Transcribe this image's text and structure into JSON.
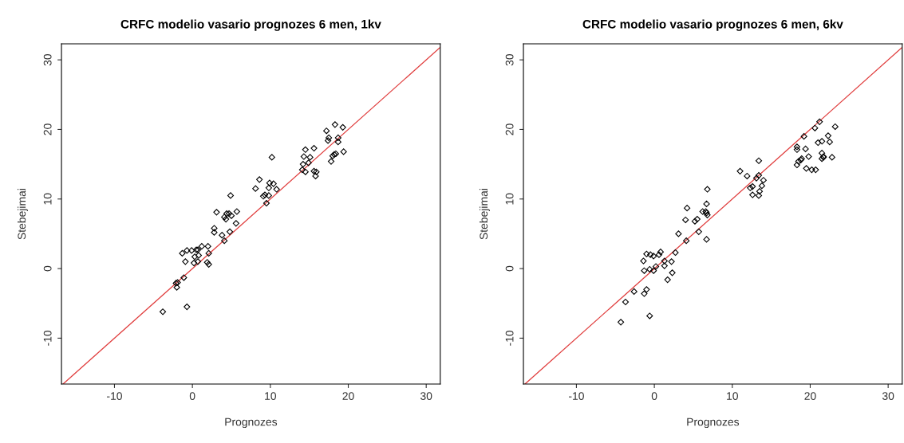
{
  "chart_data": [
    {
      "type": "scatter",
      "title": "CRFC modelio vasario prognozes 6 men, 1kv",
      "xlabel": "Prognozes",
      "ylabel": "Stebejimai",
      "xlim": [
        -16.8,
        31.8
      ],
      "ylim": [
        -16.6,
        32.3
      ],
      "xticks": [
        -10,
        0,
        10,
        20,
        30
      ],
      "yticks": [
        -10,
        0,
        10,
        20,
        30
      ],
      "grid": false,
      "marker": "diamond",
      "series": [
        {
          "color": "#000000",
          "x": [
            -3.8,
            -0.7,
            -2.0,
            -1.9,
            -2.1,
            -1.1,
            -1.3,
            -0.7,
            -0.1,
            0.5,
            0.7,
            1.2,
            2.0,
            -0.9,
            0.2,
            0.7,
            0.3,
            0.8,
            2.1,
            1.9,
            2.1,
            2.8,
            2.8,
            3.1,
            3.8,
            4.1,
            4.1,
            4.3,
            4.4,
            4.7,
            5.0,
            4.9,
            4.8,
            5.6,
            5.7,
            8.1,
            8.6,
            9.1,
            9.3,
            9.5,
            9.8,
            9.8,
            9.9,
            10.4,
            10.8,
            10.2,
            14.2,
            14.1,
            14.5,
            14.3,
            14.5,
            14.9,
            15.1,
            15.6,
            15.6,
            15.9,
            15.8,
            17.2,
            18.3,
            19.3,
            17.5,
            17.4,
            18.7,
            18.7,
            17.8,
            18.0,
            18.2,
            18.4,
            19.4
          ],
          "values": [
            -6.2,
            -5.5,
            -2.7,
            -2.0,
            -2.1,
            -1.3,
            2.2,
            2.6,
            2.6,
            2.7,
            2.7,
            3.2,
            3.2,
            1.0,
            0.8,
            1.0,
            1.7,
            1.9,
            2.2,
            0.9,
            0.6,
            5.8,
            5.2,
            8.1,
            4.8,
            4.0,
            7.4,
            7.1,
            7.9,
            7.9,
            7.6,
            10.5,
            5.3,
            6.5,
            8.2,
            11.5,
            12.8,
            10.4,
            10.6,
            9.4,
            10.5,
            11.6,
            12.3,
            12.2,
            11.4,
            16.0,
            15.0,
            14.2,
            13.9,
            16.1,
            17.1,
            15.2,
            16.0,
            17.3,
            14.0,
            13.9,
            13.3,
            19.8,
            20.7,
            20.3,
            18.8,
            18.4,
            18.8,
            18.2,
            15.4,
            16.2,
            16.4,
            16.5,
            16.8
          ]
        },
        {
          "type": "line",
          "color": "#e03c3c",
          "x": [
            -16.6,
            31.8
          ],
          "values": [
            -16.6,
            31.8
          ],
          "marker": "none"
        }
      ]
    },
    {
      "type": "scatter",
      "title": "CRFC modelio vasario prognozes 6 men, 6kv",
      "xlabel": "Prognozes",
      "ylabel": "Stebejimai",
      "xlim": [
        -16.8,
        31.8
      ],
      "ylim": [
        -16.6,
        32.3
      ],
      "xticks": [
        -10,
        0,
        10,
        20,
        30
      ],
      "yticks": [
        -10,
        0,
        10,
        20,
        30
      ],
      "grid": false,
      "marker": "diamond",
      "series": [
        {
          "color": "#000000",
          "x": [
            -4.3,
            -0.6,
            -3.7,
            -2.6,
            -1.3,
            -1.0,
            -1.4,
            -1.3,
            -0.6,
            -0.1,
            0.2,
            -1.0,
            -0.5,
            -0.1,
            0.6,
            0.8,
            1.3,
            1.3,
            2.2,
            2.7,
            1.7,
            2.3,
            3.1,
            4.1,
            4.0,
            4.2,
            5.2,
            5.5,
            5.7,
            6.7,
            6.2,
            6.6,
            6.7,
            6.8,
            6.7,
            6.8,
            11.0,
            11.9,
            13.4,
            13.1,
            13.4,
            12.3,
            12.6,
            14.0,
            13.8,
            13.5,
            12.6,
            13.4,
            18.3,
            18.3,
            19.2,
            20.6,
            21.2,
            23.2,
            19.4,
            19.8,
            18.3,
            18.5,
            18.8,
            18.9,
            19.5,
            20.2,
            20.7,
            21.0,
            21.5,
            22.3,
            22.5,
            21.5,
            21.7,
            21.5,
            21.7,
            22.8
          ],
          "values": [
            -7.7,
            -6.8,
            -4.8,
            -3.3,
            -3.6,
            -3.0,
            1.1,
            -0.3,
            -0.1,
            -0.3,
            0.3,
            2.1,
            2.0,
            1.8,
            2.0,
            2.4,
            1.1,
            0.4,
            1.0,
            2.3,
            -1.6,
            -0.6,
            5.0,
            4.0,
            7.0,
            8.7,
            6.8,
            7.1,
            5.3,
            4.2,
            8.2,
            8.2,
            8.0,
            7.7,
            9.3,
            11.4,
            14.0,
            13.3,
            15.5,
            13.0,
            13.4,
            11.6,
            11.8,
            12.7,
            11.9,
            11.1,
            10.6,
            10.5,
            17.5,
            17.1,
            19.0,
            20.2,
            21.1,
            20.4,
            17.2,
            16.1,
            14.9,
            15.4,
            15.6,
            15.8,
            14.4,
            14.2,
            14.2,
            18.1,
            18.3,
            19.1,
            18.2,
            16.6,
            16.1,
            15.8,
            16.0,
            16.0
          ]
        },
        {
          "type": "line",
          "color": "#e03c3c",
          "x": [
            -16.6,
            31.8
          ],
          "values": [
            -16.6,
            31.8
          ],
          "marker": "none"
        }
      ]
    }
  ]
}
